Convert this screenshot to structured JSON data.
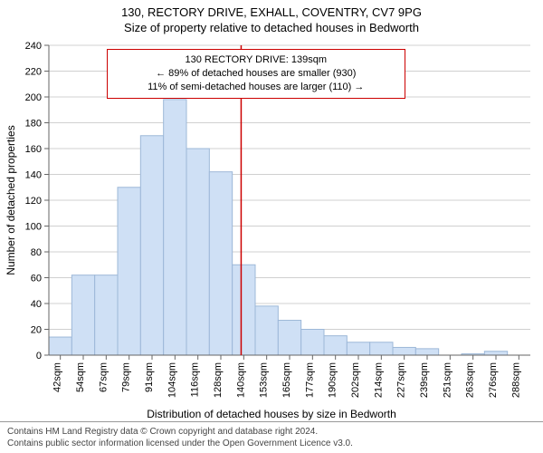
{
  "title": "130, RECTORY DRIVE, EXHALL, COVENTRY, CV7 9PG",
  "subtitle": "Size of property relative to detached houses in Bedworth",
  "y_label": "Number of detached properties",
  "x_label": "Distribution of detached houses by size in Bedworth",
  "footer_line1": "Contains HM Land Registry data © Crown copyright and database right 2024.",
  "footer_line2": "Contains public sector information licensed under the Open Government Licence v3.0.",
  "annotation": {
    "line1": "130 RECTORY DRIVE: 139sqm",
    "line2": "← 89% of detached houses are smaller (930)",
    "line3": "11% of semi-detached houses are larger (110) →",
    "border_color": "#cc0000"
  },
  "marker_line": {
    "x_value": "139sqm",
    "color": "#cc0000"
  },
  "chart": {
    "type": "histogram",
    "background_color": "#ffffff",
    "grid_color": "#d0d0d0",
    "axis_color": "#666666",
    "bar_fill": "#cfe0f5",
    "bar_stroke": "#9db8d8",
    "ylim": [
      0,
      240
    ],
    "ytick_step": 20,
    "tick_fontsize": 11,
    "x_categories": [
      "42sqm",
      "54sqm",
      "67sqm",
      "79sqm",
      "91sqm",
      "104sqm",
      "116sqm",
      "128sqm",
      "140sqm",
      "153sqm",
      "165sqm",
      "177sqm",
      "190sqm",
      "202sqm",
      "214sqm",
      "227sqm",
      "239sqm",
      "251sqm",
      "263sqm",
      "276sqm",
      "288sqm"
    ],
    "values": [
      14,
      62,
      62,
      130,
      170,
      198,
      160,
      142,
      70,
      38,
      27,
      20,
      15,
      10,
      10,
      6,
      5,
      0,
      1,
      3,
      0
    ]
  }
}
